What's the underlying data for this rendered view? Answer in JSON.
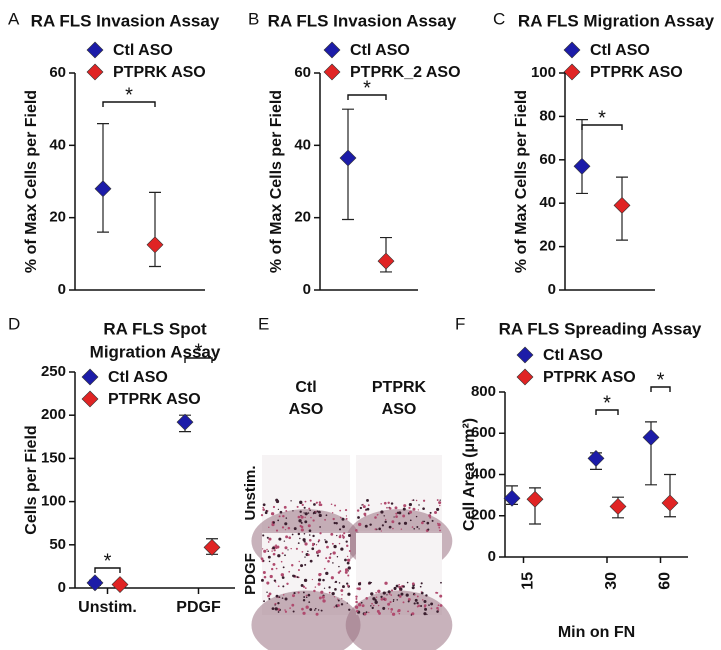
{
  "chart_data": [
    {
      "type": "scatter",
      "panel": "A",
      "title": "RA FLS Invasion Assay",
      "y_label": "% of Max Cells per Field",
      "categories": [
        null,
        null
      ],
      "series": [
        {
          "name": "Ctl ASO",
          "color": "#1c1ca8",
          "values": [
            28,
            null
          ],
          "lower": [
            16,
            null
          ],
          "upper": [
            46,
            null
          ]
        },
        {
          "name": "PTPRK ASO",
          "color": "#e02424",
          "values": [
            null,
            12.5
          ],
          "lower": [
            null,
            6.5
          ],
          "upper": [
            null,
            27
          ]
        }
      ],
      "ylim": [
        0,
        60
      ],
      "yticks": [
        0,
        20,
        40,
        60
      ],
      "significance": [
        "*"
      ]
    },
    {
      "type": "scatter",
      "panel": "B",
      "title": "RA FLS Invasion Assay",
      "y_label": "% of Max Cells per Field",
      "categories": [
        null,
        null
      ],
      "series": [
        {
          "name": "Ctl ASO",
          "color": "#1c1ca8",
          "values": [
            36.5,
            null
          ],
          "lower": [
            19.5,
            null
          ],
          "upper": [
            50,
            null
          ]
        },
        {
          "name": "PTPRK_2 ASO",
          "color": "#e02424",
          "values": [
            null,
            8
          ],
          "lower": [
            null,
            5
          ],
          "upper": [
            null,
            14.5
          ]
        }
      ],
      "ylim": [
        0,
        60
      ],
      "yticks": [
        0,
        20,
        40,
        60
      ],
      "significance": [
        "*"
      ]
    },
    {
      "type": "scatter",
      "panel": "C",
      "title": "RA FLS Migration Assay",
      "y_label": "% of Max Cells per Field",
      "categories": [
        null,
        null
      ],
      "series": [
        {
          "name": "Ctl ASO",
          "color": "#1c1ca8",
          "values": [
            57,
            null
          ],
          "lower": [
            44.5,
            null
          ],
          "upper": [
            78.5,
            null
          ]
        },
        {
          "name": "PTPRK ASO",
          "color": "#e02424",
          "values": [
            null,
            39
          ],
          "lower": [
            null,
            23
          ],
          "upper": [
            null,
            52
          ]
        }
      ],
      "ylim": [
        0,
        100
      ],
      "yticks": [
        0,
        20,
        40,
        60,
        80,
        100
      ],
      "significance": [
        "*"
      ]
    },
    {
      "type": "scatter",
      "panel": "D",
      "title": [
        "RA FLS  Spot",
        "Migration Assay"
      ],
      "y_label": "Cells per Field",
      "categories": [
        "Unstim.",
        "PDGF"
      ],
      "series": [
        {
          "name": "Ctl ASO",
          "color": "#1c1ca8",
          "values": [
            6,
            192
          ],
          "lower": [
            3,
            181
          ],
          "upper": [
            9,
            200
          ]
        },
        {
          "name": "PTPRK ASO",
          "color": "#e02424",
          "values": [
            4,
            47
          ],
          "lower": [
            2,
            39
          ],
          "upper": [
            6,
            57
          ]
        }
      ],
      "ylim": [
        0,
        250
      ],
      "yticks": [
        0,
        50,
        100,
        150,
        200,
        250
      ],
      "significance": [
        "*",
        "*"
      ]
    },
    {
      "type": "scatter",
      "panel": "F",
      "title": "RA FLS Spreading Assay",
      "y_label": "Cell Area (μm²)",
      "x_label": "Min on FN",
      "categories": [
        "15",
        "30",
        "60"
      ],
      "series": [
        {
          "name": "Ctl ASO",
          "color": "#1c1ca8",
          "values": [
            285,
            478,
            580
          ],
          "lower": [
            255,
            425,
            350
          ],
          "upper": [
            345,
            505,
            655
          ]
        },
        {
          "name": "PTPRK ASO",
          "color": "#e02424",
          "values": [
            280,
            245,
            262
          ],
          "lower": [
            160,
            190,
            195
          ],
          "upper": [
            335,
            290,
            400
          ]
        }
      ],
      "ylim": [
        0,
        800
      ],
      "yticks": [
        0,
        200,
        400,
        600,
        800
      ],
      "significance": [
        null,
        "*",
        "*"
      ]
    }
  ],
  "image_panel": {
    "panel": "E",
    "columns": [
      [
        "Ctl",
        "ASO"
      ],
      [
        "PTPRK",
        "ASO"
      ]
    ],
    "rows": [
      "Unstim.",
      "PDGF"
    ]
  }
}
